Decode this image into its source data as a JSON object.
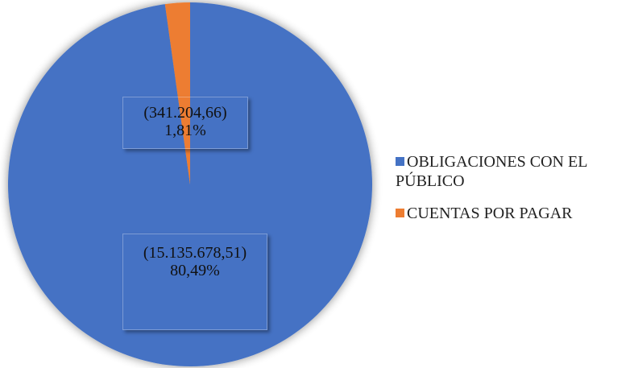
{
  "chart_data": {
    "type": "pie",
    "categories": [
      "OBLIGACIONES CON EL PÚBLICO",
      "CUENTAS POR PAGAR"
    ],
    "values": [
      15135678.51,
      341204.66
    ],
    "value_labels": [
      "(15.135.678,51)",
      "(341.204,66)"
    ],
    "percents": [
      80.49,
      1.81
    ],
    "percent_labels": [
      "80,49%",
      "1,81%"
    ],
    "colors": [
      "#4472c4",
      "#ed7d31"
    ],
    "legend": "right"
  }
}
